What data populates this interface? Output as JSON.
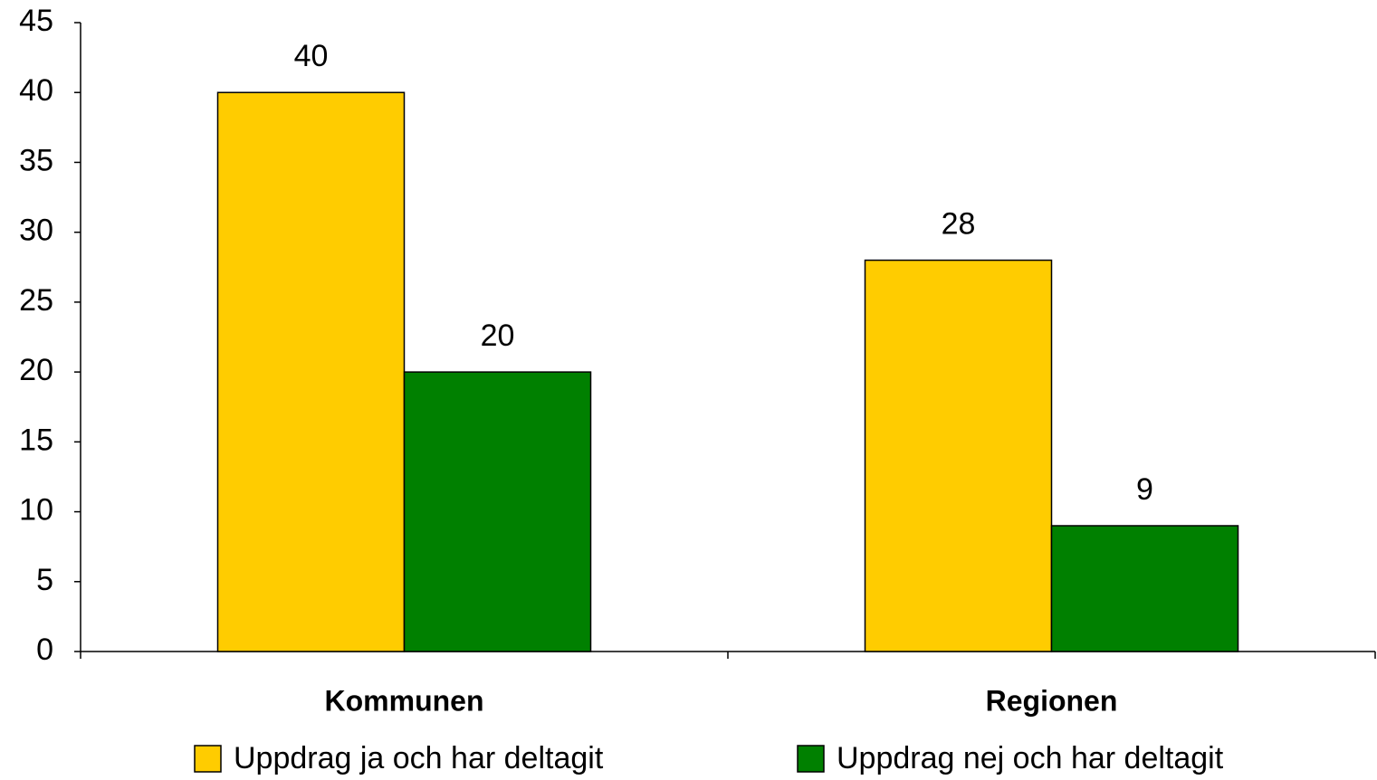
{
  "chart_data": {
    "type": "bar",
    "categories": [
      "Kommunen",
      "Regionen"
    ],
    "series": [
      {
        "name": "Uppdrag ja och har deltagit",
        "color": "#ffcc00",
        "values": [
          40,
          28
        ]
      },
      {
        "name": "Uppdrag nej och har deltagit",
        "color": "#008000",
        "values": [
          20,
          9
        ]
      }
    ],
    "ylim": [
      0,
      45
    ],
    "yticks": [
      0,
      5,
      10,
      15,
      20,
      25,
      30,
      35,
      40,
      45
    ],
    "legend": "bottom"
  }
}
